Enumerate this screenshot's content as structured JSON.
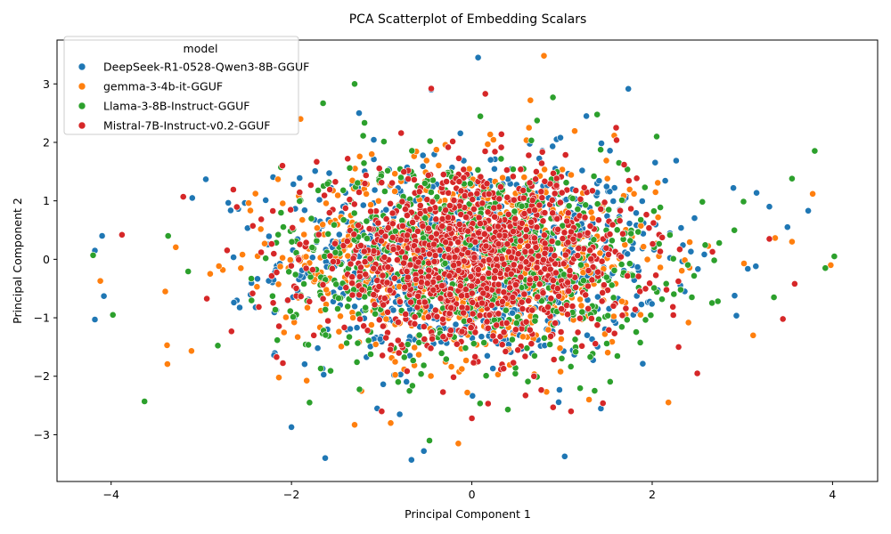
{
  "chart_data": {
    "type": "scatter",
    "title": "PCA Scatterplot of Embedding Scalars",
    "xlabel": "Principal Component 1",
    "ylabel": "Principal Component 2",
    "xlim": [
      -4.6,
      4.5
    ],
    "ylim": [
      -3.8,
      3.75
    ],
    "xticks": [
      -4,
      -2,
      0,
      2,
      4
    ],
    "yticks": [
      -3,
      -2,
      -1,
      0,
      1,
      2,
      3
    ],
    "grid": false,
    "legend": {
      "title": "model",
      "placement": "top-left"
    },
    "series": [
      {
        "name": "DeepSeek-R1-0528-Qwen3-8B-GGUF",
        "color": "#1f77b4",
        "count": 900,
        "sd": [
          1.05,
          0.85
        ],
        "points": [
          [
            0.07,
            3.45
          ],
          [
            -0.45,
            2.9
          ],
          [
            -0.67,
            -3.43
          ],
          [
            1.03,
            -3.37
          ],
          [
            -2.0,
            -2.87
          ],
          [
            -4.18,
            0.15
          ],
          [
            -4.18,
            -1.03
          ],
          [
            -4.08,
            -0.63
          ],
          [
            3.73,
            0.83
          ],
          [
            3.5,
            0.55
          ],
          [
            -3.1,
            1.05
          ],
          [
            -1.25,
            2.5
          ],
          [
            1.27,
            2.45
          ],
          [
            -0.8,
            -2.65
          ],
          [
            3.3,
            0.9
          ],
          [
            -2.95,
            1.37
          ],
          [
            2.9,
            1.22
          ],
          [
            -1.05,
            -2.55
          ]
        ]
      },
      {
        "name": "gemma-3-4b-it-GGUF",
        "color": "#ff7f0e",
        "count": 700,
        "sd": [
          1.05,
          0.85
        ],
        "points": [
          [
            0.8,
            3.48
          ],
          [
            -1.9,
            2.4
          ],
          [
            -0.15,
            -3.15
          ],
          [
            -0.9,
            -2.8
          ],
          [
            3.98,
            -0.1
          ],
          [
            3.78,
            1.12
          ],
          [
            -4.12,
            -0.37
          ],
          [
            -3.38,
            -1.47
          ],
          [
            -1.3,
            -2.83
          ],
          [
            0.65,
            2.72
          ],
          [
            1.3,
            -2.4
          ],
          [
            -3.4,
            -0.55
          ],
          [
            3.12,
            -1.3
          ],
          [
            -0.05,
            -2.28
          ],
          [
            3.55,
            0.3
          ]
        ]
      },
      {
        "name": "Llama-3-8B-Instruct-GGUF",
        "color": "#2ca02c",
        "count": 800,
        "sd": [
          1.05,
          0.85
        ],
        "points": [
          [
            -1.3,
            3.0
          ],
          [
            -1.65,
            2.67
          ],
          [
            -3.63,
            -2.43
          ],
          [
            -4.2,
            0.07
          ],
          [
            4.02,
            0.05
          ],
          [
            3.92,
            -0.15
          ],
          [
            -0.47,
            -3.1
          ],
          [
            0.4,
            -2.57
          ],
          [
            0.9,
            2.77
          ],
          [
            -3.98,
            -0.95
          ],
          [
            3.55,
            1.38
          ],
          [
            3.35,
            -0.65
          ],
          [
            -1.8,
            -2.45
          ],
          [
            2.05,
            2.1
          ]
        ]
      },
      {
        "name": "Mistral-7B-Instruct-v0.2-GGUF",
        "color": "#d62728",
        "count": 1100,
        "sd": [
          0.88,
          0.72
        ],
        "points": [
          [
            -0.45,
            2.92
          ],
          [
            0.15,
            2.83
          ],
          [
            1.1,
            -2.6
          ],
          [
            -1.0,
            -2.6
          ],
          [
            -3.88,
            0.42
          ],
          [
            3.58,
            -0.42
          ],
          [
            3.45,
            -1.02
          ],
          [
            3.3,
            0.35
          ],
          [
            -3.2,
            1.07
          ],
          [
            0.0,
            -2.72
          ],
          [
            1.6,
            2.25
          ],
          [
            -2.1,
            1.6
          ],
          [
            2.5,
            -1.95
          ]
        ]
      }
    ]
  }
}
